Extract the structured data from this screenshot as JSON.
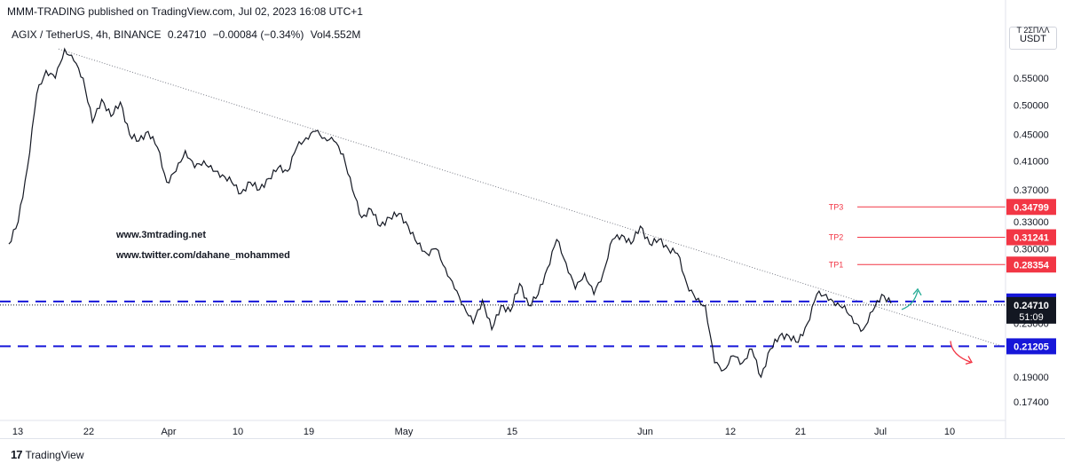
{
  "publish_line": "MMM-TRADING published on TradingView.com, Jul 02, 2023 16:08 UTC+1",
  "symbol_bar": {
    "symbol": "AGIX / TetherUS, 4h, BINANCE",
    "last": "0.24710",
    "change": "−0.00084 (−0.34%)",
    "volume": "Vol4.552M"
  },
  "currency_box": {
    "top": "T 2ΣΠΛΛ",
    "label": "USDT"
  },
  "watermarks": [
    "www.3mtrading.net",
    "www.twitter.com/dahane_mohammed"
  ],
  "footer": {
    "logo_mark": "17",
    "logo_text": "TradingView"
  },
  "colors": {
    "price_line": "#131722",
    "support": "#1717d9",
    "tp": "#f23645",
    "trendline": "#787b86",
    "green_arrow": "#22ab94"
  },
  "chart_data": {
    "type": "line",
    "title": "",
    "xlabel": "",
    "ylabel": "",
    "y_scale": "log",
    "ylim": [
      0.165,
      0.63
    ],
    "y_ticks": [
      "0.55000",
      "0.50000",
      "0.45000",
      "0.41000",
      "0.37000",
      "0.33000",
      "0.30000",
      "0.23000",
      "0.19000",
      "0.17400"
    ],
    "x_ticks": [
      "13",
      "22",
      "Apr",
      "10",
      "19",
      "May",
      "15",
      "Jun",
      "12",
      "21",
      "Jul",
      "10"
    ],
    "series": [
      {
        "values": [
          0.305,
          0.33,
          0.4,
          0.52,
          0.565,
          0.55,
          0.61,
          0.585,
          0.55,
          0.47,
          0.51,
          0.48,
          0.505,
          0.45,
          0.44,
          0.455,
          0.43,
          0.38,
          0.395,
          0.425,
          0.4,
          0.41,
          0.395,
          0.39,
          0.38,
          0.365,
          0.38,
          0.37,
          0.385,
          0.4,
          0.395,
          0.43,
          0.445,
          0.455,
          0.445,
          0.44,
          0.42,
          0.37,
          0.335,
          0.345,
          0.325,
          0.335,
          0.34,
          0.325,
          0.305,
          0.295,
          0.3,
          0.28,
          0.26,
          0.245,
          0.23,
          0.25,
          0.225,
          0.245,
          0.24,
          0.265,
          0.245,
          0.255,
          0.28,
          0.31,
          0.285,
          0.26,
          0.275,
          0.255,
          0.275,
          0.31,
          0.315,
          0.305,
          0.325,
          0.305,
          0.31,
          0.3,
          0.295,
          0.265,
          0.25,
          0.245,
          0.2,
          0.195,
          0.205,
          0.2,
          0.21,
          0.19,
          0.21,
          0.22,
          0.22,
          0.215,
          0.23,
          0.255,
          0.255,
          0.245,
          0.245,
          0.23,
          0.225,
          0.24,
          0.255,
          0.2471
        ]
      }
    ],
    "horizontal_levels": [
      {
        "label": "0.24868",
        "value": 0.24868,
        "style": "dashed",
        "color": "#1717d9"
      },
      {
        "label": "0.21205",
        "value": 0.21205,
        "style": "dashed",
        "color": "#1717d9"
      },
      {
        "label": "0.24710",
        "value": 0.2471,
        "style": "dotted",
        "color": "#131722",
        "countdown": "51:09"
      }
    ],
    "targets": [
      {
        "name": "TP3",
        "value": 0.34799,
        "label": "0.34799"
      },
      {
        "name": "TP2",
        "value": 0.31241,
        "label": "0.31241"
      },
      {
        "name": "TP1",
        "value": 0.28354,
        "label": "0.28354"
      }
    ],
    "trendline": {
      "from": 0.61,
      "to": 0.212
    },
    "legend": "none",
    "grid": false
  }
}
